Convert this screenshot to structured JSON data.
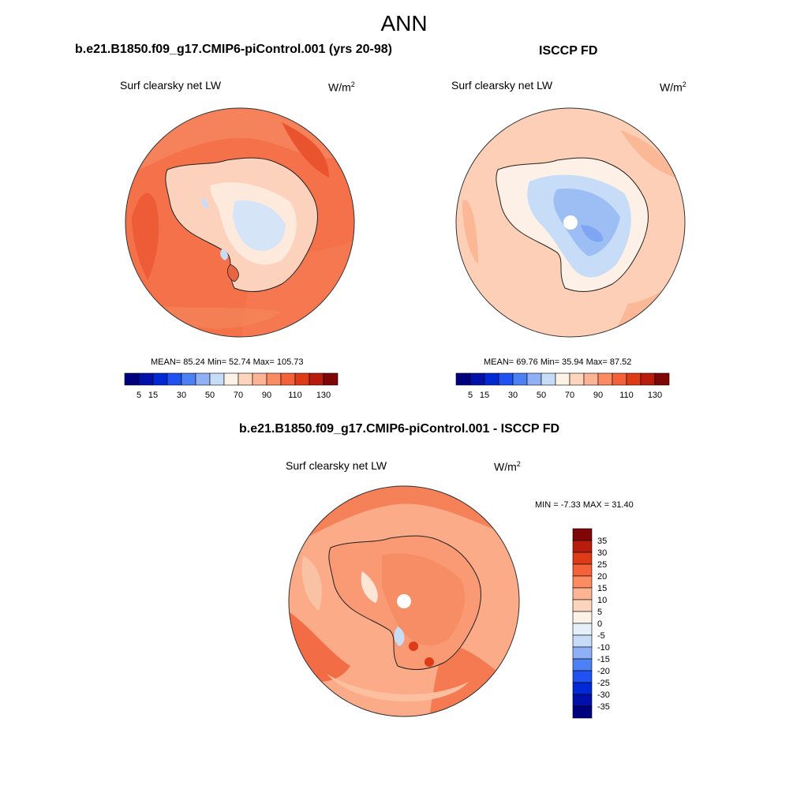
{
  "title": "ANN",
  "units_base": "W/m",
  "units_exp": "2",
  "panels": [
    {
      "title": "b.e21.B1850.f09_g17.CMIP6-piControl.001 (yrs 20-98)",
      "variable": "Surf clearsky net LW",
      "stats": "MEAN=  85.24  Min=  52.74  Max= 105.73",
      "colorbar_colors": [
        "#00007f",
        "#0010a8",
        "#0029d6",
        "#1f52f0",
        "#4d7ff5",
        "#8fb0f5",
        "#c6dcf7",
        "#fdf2e6",
        "#fdd5bd",
        "#fcb494",
        "#fc8b62",
        "#f4623a",
        "#de3b17",
        "#b81c0c",
        "#7e0606"
      ],
      "colorbar_ticks": [
        "5",
        "15",
        "30",
        "50",
        "70",
        "90",
        "110",
        "130"
      ]
    },
    {
      "title": "ISCCP FD",
      "variable": "Surf clearsky net LW",
      "stats": "MEAN=  69.76  Min=  35.94  Max=  87.52",
      "colorbar_colors": [
        "#00007f",
        "#0010a8",
        "#0029d6",
        "#1f52f0",
        "#4d7ff5",
        "#8fb0f5",
        "#c6dcf7",
        "#fdf2e6",
        "#fdd5bd",
        "#fcb494",
        "#fc8b62",
        "#f4623a",
        "#de3b17",
        "#b81c0c",
        "#7e0606"
      ],
      "colorbar_ticks": [
        "5",
        "15",
        "30",
        "50",
        "70",
        "90",
        "110",
        "130"
      ]
    },
    {
      "title": "b.e21.B1850.f09_g17.CMIP6-piControl.001 - ISCCP FD",
      "variable": "Surf clearsky net LW",
      "stats": "MIN =  -7.33 MAX =  31.40",
      "colorbar_colors": [
        "#7e0606",
        "#b81c0c",
        "#de3b17",
        "#f4623a",
        "#fc8b62",
        "#fcb494",
        "#fdd5bd",
        "#fdf2e6",
        "#e6f0fb",
        "#c6dcf7",
        "#8fb0f5",
        "#4d7ff5",
        "#1f52f0",
        "#0029d6",
        "#0010a8",
        "#00007f"
      ],
      "colorbar_ticks": [
        "35",
        "30",
        "25",
        "20",
        "15",
        "10",
        "5",
        "0",
        "-5",
        "-10",
        "-15",
        "-20",
        "-25",
        "-30",
        "-35"
      ]
    }
  ]
}
